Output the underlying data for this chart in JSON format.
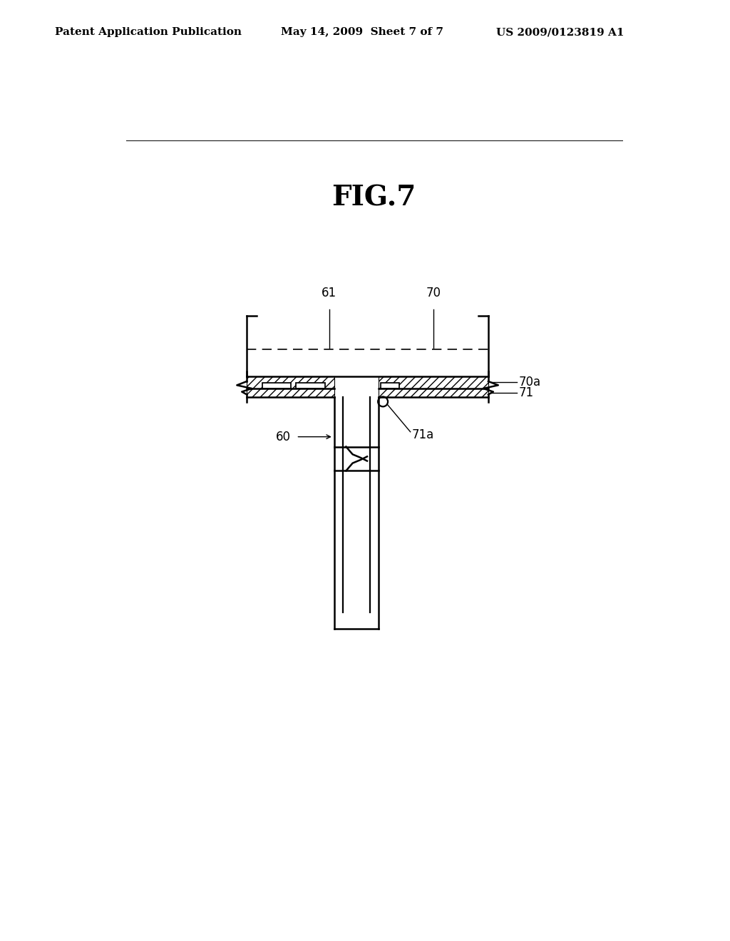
{
  "title": "FIG.7",
  "header_left": "Patent Application Publication",
  "header_center": "May 14, 2009  Sheet 7 of 7",
  "header_right": "US 2009/0123819 A1",
  "bg_color": "#ffffff",
  "line_color": "#000000",
  "fig_title_fontsize": 28,
  "header_fontsize": 11,
  "label_fontsize": 12
}
